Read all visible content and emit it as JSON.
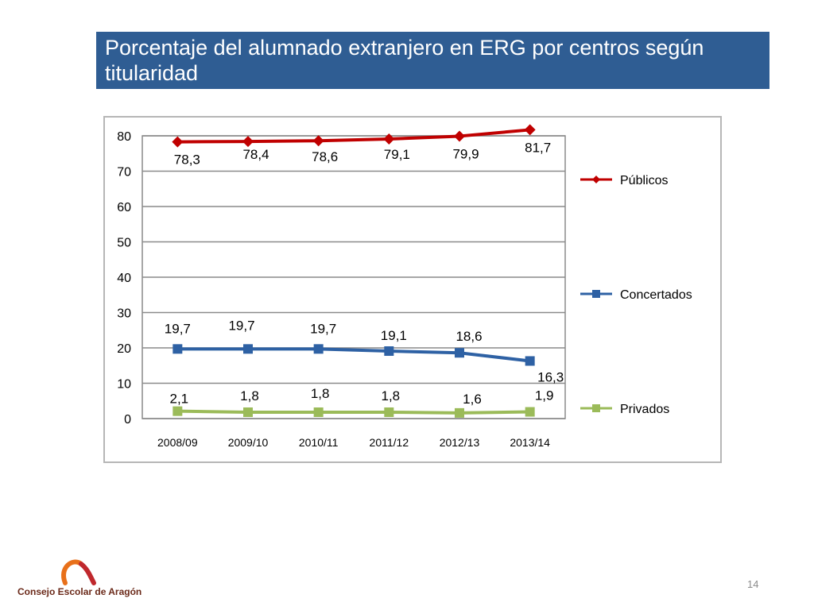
{
  "title": "Porcentaje del alumnado extranjero en ERG por centros según titularidad",
  "logo_text": "Consejo Escolar de Aragón",
  "page_number": "14",
  "chart_data": {
    "type": "line",
    "categories": [
      "2008/09",
      "2009/10",
      "2010/11",
      "2011/12",
      "2012/13",
      "2013/14"
    ],
    "ylim": [
      0,
      80
    ],
    "yticks": [
      0,
      10,
      20,
      30,
      40,
      50,
      60,
      70,
      80
    ],
    "grid": true,
    "legend_position": "right",
    "series": [
      {
        "name": "Públicos",
        "color": "#c00000",
        "marker": "diamond",
        "values": [
          78.3,
          78.4,
          78.6,
          79.1,
          79.9,
          81.7
        ],
        "labels": [
          "78,3",
          "78,4",
          "78,6",
          "79,1",
          "79,9",
          "81,7"
        ]
      },
      {
        "name": "Concertados",
        "color": "#2e61a4",
        "marker": "square",
        "values": [
          19.7,
          19.7,
          19.7,
          19.1,
          18.6,
          16.3
        ],
        "labels": [
          "19,7",
          "19,7",
          "19,7",
          "19,1",
          "18,6",
          "16,3"
        ]
      },
      {
        "name": "Privados",
        "color": "#9bbb59",
        "marker": "square",
        "values": [
          2.1,
          1.8,
          1.8,
          1.8,
          1.6,
          1.9
        ],
        "labels": [
          "2,1",
          "1,8",
          "1,8",
          "1,8",
          "1,6",
          "1,9"
        ]
      }
    ]
  }
}
